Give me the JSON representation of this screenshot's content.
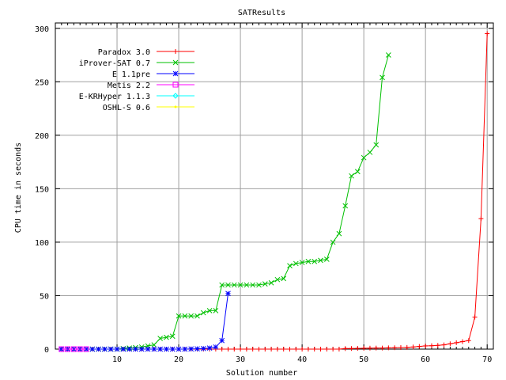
{
  "chart_data": {
    "type": "line",
    "title": "SATResults",
    "xlabel": "Solution number",
    "ylabel": "CPU time in seconds",
    "xlim": [
      0,
      71
    ],
    "ylim": [
      0,
      305
    ],
    "x_ticks": [
      10,
      20,
      30,
      40,
      50,
      60,
      70
    ],
    "y_ticks": [
      0,
      50,
      100,
      150,
      200,
      250,
      300
    ],
    "grid": true,
    "legend_position": "top-left",
    "series": [
      {
        "name": "Paradox 3.0",
        "color": "#ff0000",
        "marker": "plus",
        "x": [
          1,
          2,
          3,
          4,
          5,
          6,
          7,
          8,
          9,
          10,
          11,
          12,
          13,
          14,
          15,
          16,
          17,
          18,
          19,
          20,
          21,
          22,
          23,
          24,
          25,
          26,
          27,
          28,
          29,
          30,
          31,
          32,
          33,
          34,
          35,
          36,
          37,
          38,
          39,
          40,
          41,
          42,
          43,
          44,
          45,
          46,
          47,
          48,
          49,
          50,
          51,
          52,
          53,
          54,
          55,
          56,
          57,
          58,
          59,
          60,
          61,
          62,
          63,
          64,
          65,
          66,
          67,
          68,
          69,
          70
        ],
        "y": [
          0,
          0,
          0,
          0,
          0,
          0,
          0,
          0,
          0,
          0,
          0,
          0,
          0,
          0,
          0,
          0,
          0,
          0,
          0,
          0,
          0,
          0,
          0,
          0,
          0,
          0,
          0,
          0,
          0,
          0,
          0,
          0,
          0,
          0,
          0,
          0,
          0,
          0,
          0,
          0,
          0,
          0,
          0,
          0,
          0,
          0,
          0.5,
          0.6,
          0.7,
          0.8,
          0.9,
          1,
          1,
          1.2,
          1.3,
          1.5,
          1.6,
          2,
          2.5,
          3,
          3.2,
          3.5,
          4,
          5,
          6,
          7,
          8,
          30,
          122,
          295
        ]
      },
      {
        "name": "iProver-SAT 0.7",
        "color": "#00c000",
        "marker": "x",
        "x": [
          1,
          2,
          3,
          4,
          5,
          6,
          7,
          8,
          9,
          10,
          11,
          12,
          13,
          14,
          15,
          16,
          17,
          18,
          19,
          20,
          21,
          22,
          23,
          24,
          25,
          26,
          27,
          28,
          29,
          30,
          31,
          32,
          33,
          34,
          35,
          36,
          37,
          38,
          39,
          40,
          41,
          42,
          43,
          44,
          45,
          46,
          47,
          48,
          49,
          50,
          51,
          52,
          53,
          54
        ],
        "y": [
          0,
          0,
          0,
          0,
          0,
          0,
          0,
          0,
          0,
          0,
          0.5,
          1,
          1.5,
          2,
          3,
          4,
          10,
          11,
          12,
          31,
          31,
          31,
          31,
          34,
          36,
          36,
          60,
          60,
          60,
          60,
          60,
          60,
          60,
          61,
          62,
          65,
          66,
          78,
          80,
          81,
          82,
          82,
          83,
          84,
          100,
          108,
          134,
          162,
          166,
          179,
          184,
          191,
          254,
          275
        ]
      },
      {
        "name": "E 1.1pre",
        "color": "#0000ff",
        "marker": "asterisk",
        "x": [
          1,
          2,
          3,
          4,
          5,
          6,
          7,
          8,
          9,
          10,
          11,
          12,
          13,
          14,
          15,
          16,
          17,
          18,
          19,
          20,
          21,
          22,
          23,
          24,
          25,
          26,
          27,
          28
        ],
        "y": [
          0,
          0,
          0,
          0,
          0,
          0,
          0,
          0,
          0,
          0,
          0,
          0,
          0,
          0,
          0,
          0,
          0,
          0,
          0,
          0,
          0,
          0.2,
          0.3,
          0.5,
          1,
          2,
          8,
          52
        ]
      },
      {
        "name": "Metis 2.2",
        "color": "#ff00ff",
        "marker": "square",
        "x": [
          1,
          2,
          3,
          4,
          5
        ],
        "y": [
          0,
          0,
          0,
          0,
          0
        ]
      },
      {
        "name": "E-KRHyper 1.1.3",
        "color": "#00ffff",
        "marker": "diamond",
        "x": [],
        "y": []
      },
      {
        "name": "OSHL-S 0.6",
        "color": "#ffff00",
        "marker": "dot",
        "x": [],
        "y": []
      }
    ]
  }
}
